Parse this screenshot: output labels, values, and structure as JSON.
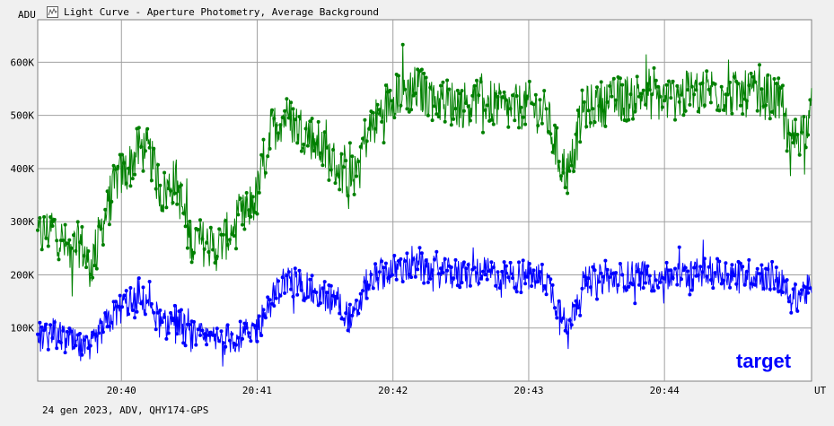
{
  "window": {
    "title": "Light Curve - Aperture Photometry, Average Background",
    "icon": "light-curve-icon"
  },
  "footer": {
    "info": "24 gen 2023, ADV, QHY174-GPS"
  },
  "colors": {
    "background": "#f0f0f0",
    "plot_background": "#ffffff",
    "grid": "#a0a0a0",
    "green_series": "#008000",
    "blue_series": "#0000ff",
    "legend_text": "#0000ff"
  },
  "chart_data": {
    "type": "line",
    "title": "",
    "xlabel": "UT",
    "ylabel": "ADU",
    "grid": true,
    "ylim": [
      0,
      680000
    ],
    "xlim": [
      "20:39:23",
      "20:45:05"
    ],
    "y_ticks": [
      {
        "value": 100000,
        "label": "100K"
      },
      {
        "value": 200000,
        "label": "200K"
      },
      {
        "value": 300000,
        "label": "300K"
      },
      {
        "value": 400000,
        "label": "400K"
      },
      {
        "value": 500000,
        "label": "500K"
      },
      {
        "value": 600000,
        "label": "600K"
      }
    ],
    "x_ticks": [
      "20:40",
      "20:41",
      "20:42",
      "20:43",
      "20:44"
    ],
    "legend": {
      "label": "target",
      "position": "bottom-right"
    },
    "series": [
      {
        "name": "",
        "color": "#008000",
        "x": [
          "20:39:23",
          "20:39:30",
          "20:39:37",
          "20:39:42",
          "20:39:46",
          "20:39:52",
          "20:39:58",
          "20:40:03",
          "20:40:08",
          "20:40:12",
          "20:40:18",
          "20:40:24",
          "20:40:30",
          "20:40:36",
          "20:40:42",
          "20:40:48",
          "20:40:54",
          "20:41:00",
          "20:41:06",
          "20:41:12",
          "20:41:18",
          "20:41:24",
          "20:41:30",
          "20:41:36",
          "20:41:42",
          "20:41:48",
          "20:41:54",
          "20:42:00",
          "20:42:10",
          "20:42:20",
          "20:42:30",
          "20:42:40",
          "20:42:50",
          "20:43:00",
          "20:43:08",
          "20:43:14",
          "20:43:18",
          "20:43:24",
          "20:43:30",
          "20:43:40",
          "20:43:50",
          "20:44:00",
          "20:44:10",
          "20:44:20",
          "20:44:30",
          "20:44:40",
          "20:44:50",
          "20:44:56",
          "20:45:05"
        ],
        "values": [
          270000,
          290000,
          240000,
          260000,
          210000,
          300000,
          380000,
          400000,
          440000,
          430000,
          350000,
          380000,
          270000,
          260000,
          250000,
          280000,
          310000,
          350000,
          470000,
          500000,
          480000,
          460000,
          430000,
          400000,
          380000,
          460000,
          500000,
          540000,
          550000,
          530000,
          520000,
          530000,
          510000,
          520000,
          500000,
          410000,
          390000,
          510000,
          520000,
          530000,
          540000,
          530000,
          540000,
          550000,
          540000,
          540000,
          530000,
          450000,
          490000
        ]
      },
      {
        "name": "",
        "color": "#0000ff",
        "x": [
          "20:39:23",
          "20:39:30",
          "20:39:37",
          "20:39:42",
          "20:39:46",
          "20:39:52",
          "20:39:58",
          "20:40:03",
          "20:40:08",
          "20:40:12",
          "20:40:18",
          "20:40:24",
          "20:40:30",
          "20:40:36",
          "20:40:42",
          "20:40:48",
          "20:40:54",
          "20:41:00",
          "20:41:06",
          "20:41:12",
          "20:41:18",
          "20:41:24",
          "20:41:30",
          "20:41:36",
          "20:41:42",
          "20:41:48",
          "20:41:54",
          "20:42:00",
          "20:42:10",
          "20:42:20",
          "20:42:30",
          "20:42:40",
          "20:42:50",
          "20:43:00",
          "20:43:08",
          "20:43:14",
          "20:43:18",
          "20:43:24",
          "20:43:30",
          "20:43:40",
          "20:43:50",
          "20:44:00",
          "20:44:10",
          "20:44:20",
          "20:44:30",
          "20:44:40",
          "20:44:50",
          "20:44:56",
          "20:45:05"
        ],
        "values": [
          80000,
          90000,
          75000,
          60000,
          55000,
          100000,
          130000,
          150000,
          145000,
          155000,
          100000,
          120000,
          85000,
          80000,
          75000,
          80000,
          85000,
          100000,
          150000,
          190000,
          185000,
          170000,
          160000,
          150000,
          110000,
          180000,
          200000,
          210000,
          215000,
          205000,
          200000,
          205000,
          195000,
          200000,
          190000,
          130000,
          110000,
          185000,
          190000,
          195000,
          200000,
          195000,
          200000,
          205000,
          200000,
          200000,
          195000,
          155000,
          175000
        ]
      }
    ]
  }
}
